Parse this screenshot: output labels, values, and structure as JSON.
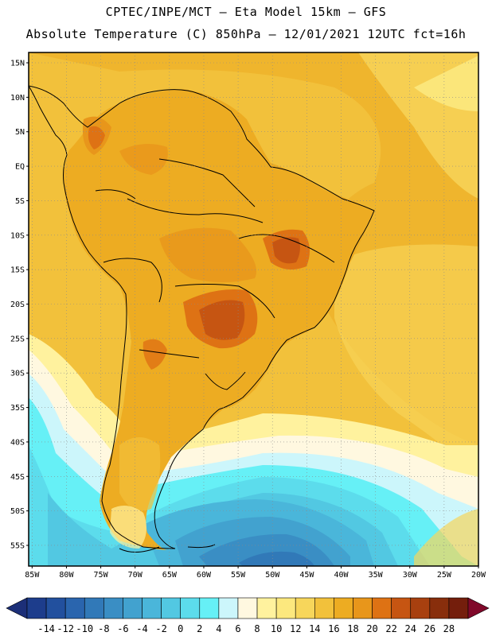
{
  "header": {
    "line1": "CPTEC/INPE/MCT –  Eta Model 15km – GFS",
    "line2": "Absolute Temperature (C) 850hPa – 12/01/2021 12UTC fct=16h"
  },
  "axes": {
    "lat_labels": [
      "15N",
      "10N",
      "5N",
      "EQ",
      "5S",
      "10S",
      "15S",
      "20S",
      "25S",
      "30S",
      "35S",
      "40S",
      "45S",
      "50S",
      "55S"
    ],
    "lat_values": [
      15,
      10,
      5,
      0,
      -5,
      -10,
      -15,
      -20,
      -25,
      -30,
      -35,
      -40,
      -45,
      -50,
      -55
    ],
    "lon_labels": [
      "85W",
      "80W",
      "75W",
      "70W",
      "65W",
      "60W",
      "55W",
      "50W",
      "45W",
      "40W",
      "35W",
      "30W",
      "25W",
      "20W"
    ],
    "lon_values": [
      -85,
      -80,
      -75,
      -70,
      -65,
      -60,
      -55,
      -50,
      -45,
      -40,
      -35,
      -30,
      -25,
      -20
    ],
    "lat_range": [
      -58,
      16.5
    ],
    "lon_range": [
      -85.5,
      -20
    ]
  },
  "colorbar": {
    "labels": [
      "-14",
      "-12",
      "-10",
      "-8",
      "-6",
      "-4",
      "-2",
      "0",
      "2",
      "4",
      "6",
      "8",
      "10",
      "12",
      "14",
      "16",
      "18",
      "20",
      "22",
      "24",
      "26",
      "28"
    ],
    "colors": [
      "#1d3d8c",
      "#22509e",
      "#2a65ae",
      "#3179b8",
      "#3a8ec4",
      "#42a2cf",
      "#4ab6da",
      "#52c8e2",
      "#5cdcec",
      "#66f0f6",
      "#ccf6fb",
      "#fff8e0",
      "#fff29e",
      "#fce87e",
      "#f7d65b",
      "#f2c13b",
      "#edac22",
      "#e8961b",
      "#de7214",
      "#c65512",
      "#a8400f",
      "#882e0c",
      "#741e0c"
    ],
    "under_color": "#1c2f78",
    "over_color": "#80082a"
  },
  "map_layers": {
    "ocean_color": "#f2c13b",
    "land_color": "#edac22"
  }
}
